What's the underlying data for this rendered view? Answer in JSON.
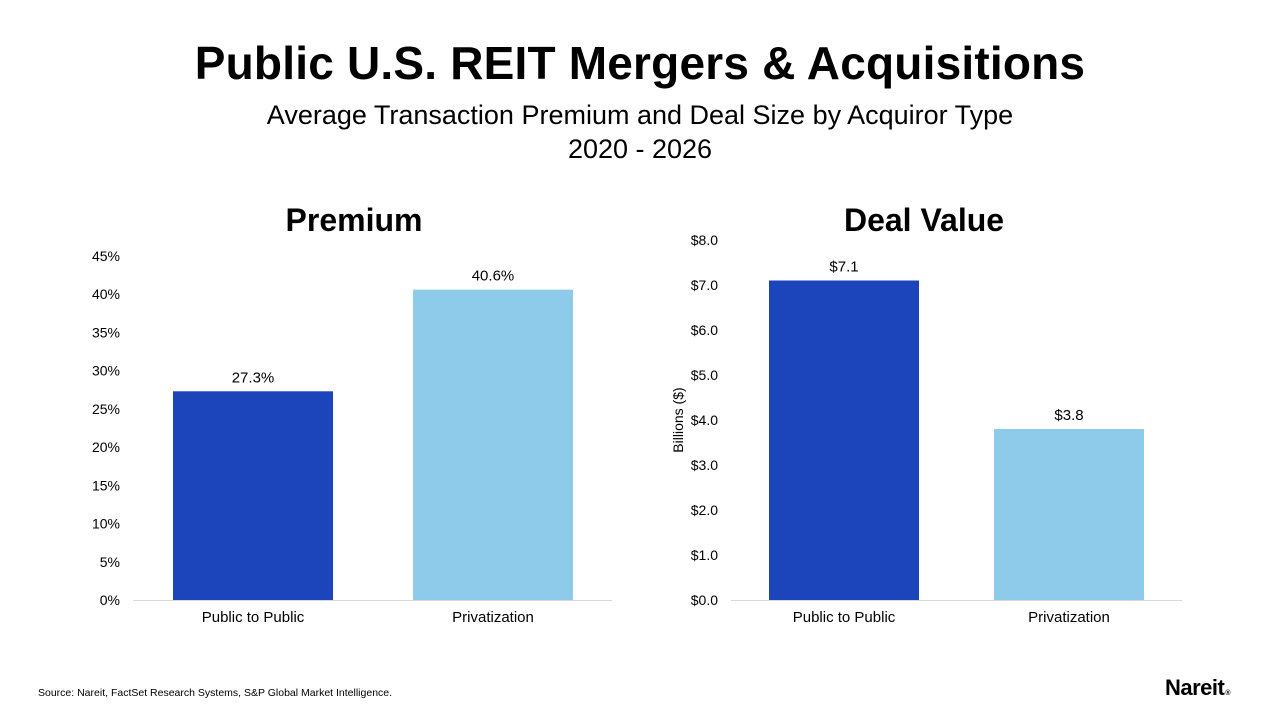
{
  "title": "Public U.S. REIT Mergers & Acquisitions",
  "subtitle_line1": "Average Transaction Premium and Deal Size by Acquiror Type",
  "subtitle_line2": "2020 - 2026",
  "source": "Source: Nareit, FactSet Research Systems, S&P Global Market Intelligence.",
  "logo": {
    "text": "Nareit",
    "mark": "®"
  },
  "colors": {
    "public_to_public": "#1c44bb",
    "privatization": "#8ecbea",
    "axis": "#d9d9d9"
  },
  "chart_data": [
    {
      "type": "bar",
      "title": "Premium",
      "categories": [
        "Public to Public",
        "Privatization"
      ],
      "values": [
        27.3,
        40.6
      ],
      "value_labels": [
        "27.3%",
        "40.6%"
      ],
      "ylim": [
        0,
        45
      ],
      "yticks": [
        0,
        5,
        10,
        15,
        20,
        25,
        30,
        35,
        40,
        45
      ],
      "ytick_labels": [
        "0%",
        "5%",
        "10%",
        "15%",
        "20%",
        "25%",
        "30%",
        "35%",
        "40%",
        "45%"
      ],
      "xlabel": "",
      "ylabel": "",
      "grid": false
    },
    {
      "type": "bar",
      "title": "Deal Value",
      "categories": [
        "Public to Public",
        "Privatization"
      ],
      "values": [
        7.1,
        3.8
      ],
      "value_labels": [
        "$7.1",
        "$3.8"
      ],
      "ylim": [
        0,
        8
      ],
      "yticks": [
        0,
        1,
        2,
        3,
        4,
        5,
        6,
        7,
        8
      ],
      "ytick_labels": [
        "$0.0",
        "$1.0",
        "$2.0",
        "$3.0",
        "$4.0",
        "$5.0",
        "$6.0",
        "$7.0",
        "$8.0"
      ],
      "xlabel": "",
      "ylabel": "Billions ($)",
      "grid": false
    }
  ]
}
